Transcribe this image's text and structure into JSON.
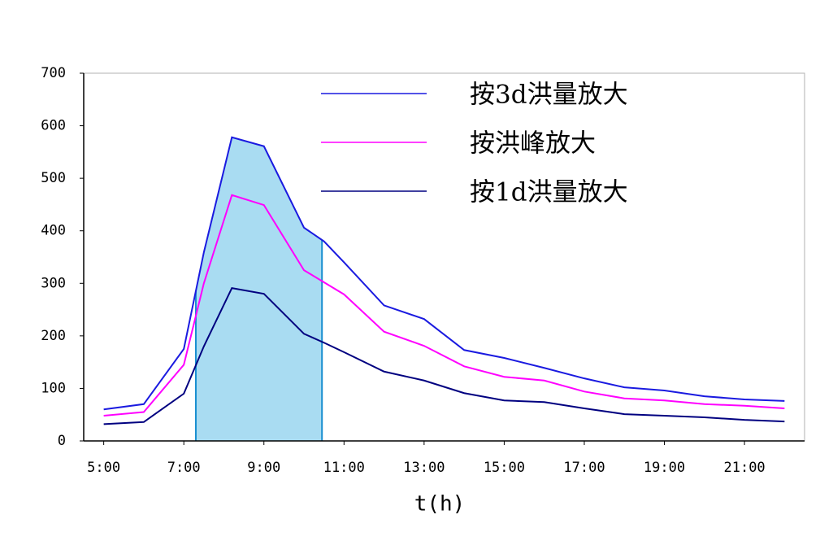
{
  "chart_data": {
    "type": "line",
    "x_label": "t(h)",
    "x": [
      5,
      6,
      7,
      7.5,
      8.2,
      9,
      10,
      10.5,
      11,
      12,
      13,
      14,
      15,
      16,
      17,
      18,
      19,
      20,
      21,
      22
    ],
    "series": [
      {
        "name": "按3d洪量放大",
        "color": "#1a1ae0",
        "values": [
          60,
          70,
          175,
          359,
          578,
          561,
          406,
          380,
          340,
          258,
          232,
          173,
          158,
          139,
          119,
          102,
          96,
          85,
          79,
          76
        ]
      },
      {
        "name": "按洪峰放大",
        "color": "#ff00ff",
        "values": [
          48,
          55,
          145,
          300,
          468,
          449,
          325,
          302,
          279,
          208,
          181,
          142,
          122,
          115,
          94,
          81,
          77,
          70,
          67,
          62
        ]
      },
      {
        "name": "按1d洪量放大",
        "color": "#000080",
        "values": [
          32,
          36,
          90,
          180,
          291,
          280,
          204,
          187,
          169,
          132,
          115,
          91,
          77,
          74,
          62,
          51,
          48,
          45,
          40,
          37
        ]
      }
    ],
    "highlight": [
      7.3,
      10.45
    ],
    "highlight_color": "#a9dcf2",
    "xlim": [
      4.5,
      22.5
    ],
    "xticks": [
      {
        "value": 5,
        "label": "5:00"
      },
      {
        "value": 7,
        "label": "7:00"
      },
      {
        "value": 9,
        "label": "9:00"
      },
      {
        "value": 11,
        "label": "11:00"
      },
      {
        "value": 13,
        "label": "13:00"
      },
      {
        "value": 15,
        "label": "15:00"
      },
      {
        "value": 17,
        "label": "17:00"
      },
      {
        "value": 19,
        "label": "19:00"
      },
      {
        "value": 21,
        "label": "21:00"
      }
    ],
    "ylim": [
      0,
      700
    ],
    "yticks": [
      0,
      100,
      200,
      300,
      400,
      500,
      600,
      700
    ]
  }
}
